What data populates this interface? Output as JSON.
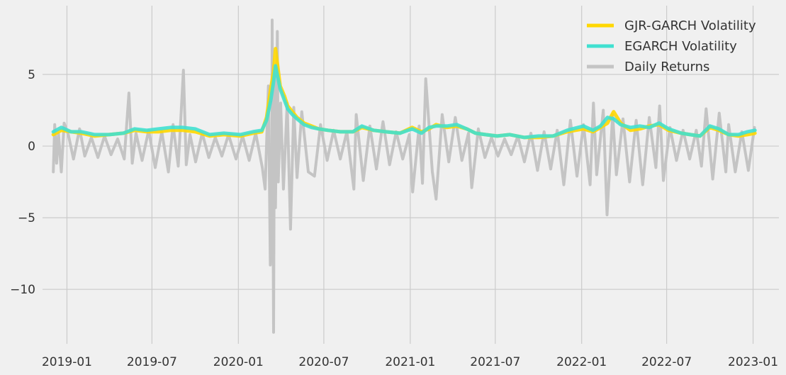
{
  "chart_data": {
    "type": "line",
    "title": "",
    "xlabel": "",
    "ylabel": "",
    "x_range": [
      "2018-11-10",
      "2023-02-25"
    ],
    "ylim": [
      -13.8,
      9.8
    ],
    "x_tick_labels": [
      "2019-01",
      "2019-07",
      "2020-01",
      "2020-07",
      "2021-01",
      "2021-07",
      "2022-01",
      "2022-07",
      "2023-01"
    ],
    "x_tick_dates": [
      "2019-01-01",
      "2019-07-01",
      "2020-01-01",
      "2020-07-01",
      "2021-01-01",
      "2021-07-01",
      "2022-01-01",
      "2022-07-01",
      "2023-01-01"
    ],
    "y_ticks": [
      -10,
      -5,
      0,
      5
    ],
    "y_tick_labels": [
      "−10",
      "−5",
      "0",
      "5"
    ],
    "grid": true,
    "legend_position": "top-right",
    "series": [
      {
        "name": "GJR-GARCH Volatility",
        "color": "#ffd700",
        "x": [
          "2018-12-03",
          "2018-12-20",
          "2019-01-10",
          "2019-02-01",
          "2019-03-01",
          "2019-04-01",
          "2019-05-01",
          "2019-05-25",
          "2019-06-20",
          "2019-07-15",
          "2019-08-10",
          "2019-09-05",
          "2019-10-01",
          "2019-11-01",
          "2019-12-01",
          "2020-01-05",
          "2020-02-01",
          "2020-02-20",
          "2020-03-01",
          "2020-03-10",
          "2020-03-16",
          "2020-03-20",
          "2020-03-30",
          "2020-04-08",
          "2020-04-15",
          "2020-04-25",
          "2020-05-05",
          "2020-05-20",
          "2020-06-05",
          "2020-06-20",
          "2020-07-10",
          "2020-08-05",
          "2020-09-01",
          "2020-09-20",
          "2020-10-15",
          "2020-11-10",
          "2020-12-10",
          "2021-01-05",
          "2021-01-25",
          "2021-02-10",
          "2021-02-25",
          "2021-03-20",
          "2021-04-10",
          "2021-05-01",
          "2021-05-20",
          "2021-06-10",
          "2021-07-05",
          "2021-08-01",
          "2021-09-01",
          "2021-10-01",
          "2021-11-01",
          "2021-12-01",
          "2022-01-05",
          "2022-01-25",
          "2022-02-10",
          "2022-02-25",
          "2022-03-10",
          "2022-03-25",
          "2022-04-15",
          "2022-05-05",
          "2022-05-25",
          "2022-06-15",
          "2022-07-05",
          "2022-08-01",
          "2022-08-20",
          "2022-09-10",
          "2022-10-01",
          "2022-10-20",
          "2022-11-10",
          "2022-12-01",
          "2022-12-20",
          "2023-01-05"
        ],
        "y": [
          0.8,
          1.1,
          1.0,
          0.9,
          0.7,
          0.8,
          0.9,
          1.1,
          1.0,
          1.0,
          1.1,
          1.1,
          1.0,
          0.7,
          0.8,
          0.7,
          0.9,
          1.0,
          2.0,
          4.0,
          5.2,
          6.8,
          4.2,
          3.5,
          2.8,
          2.4,
          2.0,
          1.6,
          1.4,
          1.2,
          1.1,
          1.0,
          1.0,
          1.3,
          1.1,
          1.0,
          0.9,
          1.3,
          1.0,
          1.2,
          1.5,
          1.3,
          1.4,
          1.2,
          0.9,
          0.8,
          0.7,
          0.8,
          0.6,
          0.6,
          0.7,
          1.0,
          1.2,
          1.0,
          1.3,
          1.6,
          2.4,
          1.6,
          1.1,
          1.2,
          1.4,
          1.5,
          1.1,
          0.9,
          0.8,
          0.7,
          1.3,
          1.1,
          0.8,
          0.7,
          0.8,
          0.9
        ]
      },
      {
        "name": "EGARCH Volatility",
        "color": "#40e0d0",
        "x": [
          "2018-12-03",
          "2018-12-20",
          "2019-01-10",
          "2019-02-01",
          "2019-03-01",
          "2019-04-01",
          "2019-05-01",
          "2019-05-25",
          "2019-06-20",
          "2019-07-15",
          "2019-08-10",
          "2019-09-05",
          "2019-10-01",
          "2019-11-01",
          "2019-12-01",
          "2020-01-05",
          "2020-02-01",
          "2020-02-20",
          "2020-03-01",
          "2020-03-10",
          "2020-03-16",
          "2020-03-20",
          "2020-03-30",
          "2020-04-08",
          "2020-04-15",
          "2020-04-25",
          "2020-05-05",
          "2020-05-20",
          "2020-06-05",
          "2020-06-20",
          "2020-07-10",
          "2020-08-05",
          "2020-09-01",
          "2020-09-20",
          "2020-10-15",
          "2020-11-10",
          "2020-12-10",
          "2021-01-05",
          "2021-01-25",
          "2021-02-10",
          "2021-02-25",
          "2021-03-20",
          "2021-04-10",
          "2021-05-01",
          "2021-05-20",
          "2021-06-10",
          "2021-07-05",
          "2021-08-01",
          "2021-09-01",
          "2021-10-01",
          "2021-11-01",
          "2021-12-01",
          "2022-01-05",
          "2022-01-25",
          "2022-02-10",
          "2022-02-25",
          "2022-03-10",
          "2022-03-25",
          "2022-04-15",
          "2022-05-05",
          "2022-05-25",
          "2022-06-15",
          "2022-07-05",
          "2022-08-01",
          "2022-08-20",
          "2022-09-10",
          "2022-10-01",
          "2022-10-20",
          "2022-11-10",
          "2022-12-01",
          "2022-12-20",
          "2023-01-05"
        ],
        "y": [
          1.0,
          1.3,
          1.0,
          1.0,
          0.8,
          0.8,
          0.9,
          1.2,
          1.1,
          1.2,
          1.3,
          1.3,
          1.2,
          0.8,
          0.9,
          0.8,
          1.0,
          1.1,
          1.8,
          3.2,
          4.5,
          5.6,
          4.0,
          3.2,
          2.6,
          2.2,
          1.9,
          1.5,
          1.3,
          1.2,
          1.1,
          1.0,
          1.0,
          1.4,
          1.1,
          1.0,
          0.9,
          1.2,
          0.9,
          1.3,
          1.4,
          1.4,
          1.5,
          1.2,
          0.9,
          0.8,
          0.7,
          0.8,
          0.6,
          0.7,
          0.7,
          1.1,
          1.4,
          1.1,
          1.4,
          2.0,
          1.9,
          1.5,
          1.3,
          1.4,
          1.3,
          1.6,
          1.2,
          0.9,
          0.8,
          0.7,
          1.4,
          1.2,
          0.8,
          0.8,
          1.0,
          1.1
        ]
      },
      {
        "name": "Daily Returns",
        "color": "#c4c4c4",
        "x": [
          "2018-12-03",
          "2018-12-06",
          "2018-12-10",
          "2018-12-14",
          "2018-12-20",
          "2018-12-26",
          "2019-01-04",
          "2019-01-15",
          "2019-01-28",
          "2019-02-08",
          "2019-02-22",
          "2019-03-08",
          "2019-03-22",
          "2019-04-05",
          "2019-04-19",
          "2019-05-03",
          "2019-05-13",
          "2019-05-20",
          "2019-05-28",
          "2019-06-10",
          "2019-06-24",
          "2019-07-08",
          "2019-07-22",
          "2019-08-05",
          "2019-08-15",
          "2019-08-26",
          "2019-09-06",
          "2019-09-12",
          "2019-09-20",
          "2019-10-02",
          "2019-10-16",
          "2019-10-30",
          "2019-11-13",
          "2019-11-27",
          "2019-12-11",
          "2019-12-27",
          "2020-01-10",
          "2020-01-24",
          "2020-02-07",
          "2020-02-21",
          "2020-02-27",
          "2020-03-05",
          "2020-03-09",
          "2020-03-12",
          "2020-03-13",
          "2020-03-16",
          "2020-03-18",
          "2020-03-20",
          "2020-03-24",
          "2020-03-26",
          "2020-03-31",
          "2020-04-06",
          "2020-04-14",
          "2020-04-21",
          "2020-04-28",
          "2020-05-05",
          "2020-05-15",
          "2020-05-29",
          "2020-06-11",
          "2020-06-24",
          "2020-07-08",
          "2020-07-22",
          "2020-08-05",
          "2020-08-19",
          "2020-09-03",
          "2020-09-08",
          "2020-09-23",
          "2020-10-07",
          "2020-10-21",
          "2020-11-04",
          "2020-11-18",
          "2020-12-02",
          "2020-12-16",
          "2020-12-30",
          "2021-01-06",
          "2021-01-20",
          "2021-01-27",
          "2021-02-03",
          "2021-02-17",
          "2021-02-25",
          "2021-03-10",
          "2021-03-24",
          "2021-04-07",
          "2021-04-21",
          "2021-05-05",
          "2021-05-12",
          "2021-05-26",
          "2021-06-09",
          "2021-06-23",
          "2021-07-07",
          "2021-07-21",
          "2021-08-04",
          "2021-08-18",
          "2021-09-01",
          "2021-09-15",
          "2021-09-29",
          "2021-10-13",
          "2021-10-27",
          "2021-11-10",
          "2021-11-24",
          "2021-12-08",
          "2021-12-22",
          "2022-01-05",
          "2022-01-19",
          "2022-01-26",
          "2022-02-02",
          "2022-02-16",
          "2022-02-24",
          "2022-03-08",
          "2022-03-16",
          "2022-03-30",
          "2022-04-13",
          "2022-04-27",
          "2022-05-11",
          "2022-05-25",
          "2022-06-08",
          "2022-06-16",
          "2022-06-24",
          "2022-07-08",
          "2022-07-22",
          "2022-08-05",
          "2022-08-19",
          "2022-09-02",
          "2022-09-13",
          "2022-09-23",
          "2022-10-07",
          "2022-10-21",
          "2022-11-04",
          "2022-11-10",
          "2022-11-24",
          "2022-12-08",
          "2022-12-22",
          "2023-01-04"
        ],
        "y": [
          -1.8,
          1.5,
          -1.2,
          0.9,
          -1.8,
          1.6,
          0.8,
          -0.9,
          1.2,
          -0.7,
          0.6,
          -0.8,
          0.7,
          -0.6,
          0.5,
          -0.9,
          3.7,
          -1.2,
          0.9,
          -1.0,
          1.1,
          -1.5,
          1.0,
          -1.8,
          1.5,
          -1.4,
          5.3,
          -1.3,
          0.8,
          -1.1,
          0.9,
          -0.8,
          0.6,
          -0.7,
          0.8,
          -0.9,
          0.7,
          -1.0,
          0.9,
          -1.5,
          -3.0,
          4.2,
          -8.3,
          -5.0,
          8.8,
          -13.0,
          5.0,
          -4.3,
          8.0,
          -2.5,
          3.0,
          -3.0,
          3.0,
          -5.8,
          2.7,
          -2.2,
          2.4,
          -1.8,
          -2.1,
          1.5,
          -1.0,
          1.1,
          -0.9,
          1.0,
          -3.0,
          2.2,
          -2.4,
          1.4,
          -1.6,
          1.7,
          -1.3,
          1.0,
          -0.9,
          0.8,
          -3.2,
          1.4,
          -2.6,
          4.7,
          -1.8,
          -3.7,
          2.2,
          -1.1,
          2.0,
          -1.0,
          0.9,
          -2.9,
          1.2,
          -0.8,
          0.6,
          -0.7,
          0.5,
          -0.6,
          0.7,
          -1.1,
          0.9,
          -1.7,
          1.0,
          -1.6,
          1.1,
          -2.7,
          1.8,
          -2.1,
          1.5,
          -2.7,
          3.0,
          -2.0,
          2.5,
          -4.8,
          2.2,
          -2.0,
          1.9,
          -2.5,
          1.8,
          -2.7,
          2.0,
          -1.5,
          2.8,
          -2.4,
          1.3,
          -1.0,
          1.1,
          -0.9,
          1.1,
          -1.4,
          2.6,
          -2.3,
          2.3,
          -1.8,
          1.5,
          -1.8,
          1.0,
          -1.7,
          1.3
        ]
      }
    ]
  }
}
